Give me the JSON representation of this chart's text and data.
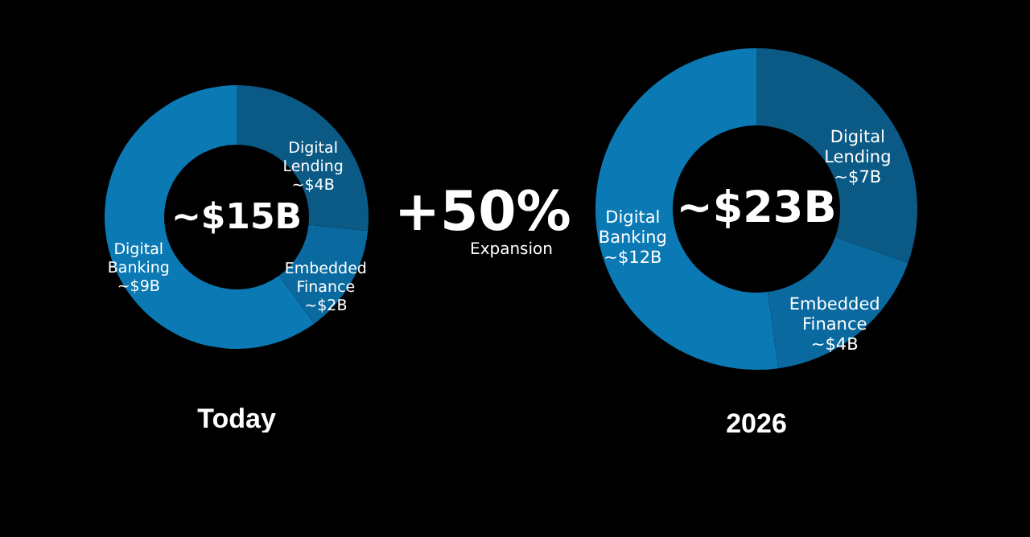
{
  "chart_data": [
    {
      "type": "donut",
      "title": "Today",
      "categories": [
        "Digital Lending",
        "Embedded Finance",
        "Digital Banking"
      ],
      "values": [
        4,
        2,
        9
      ],
      "value_labels": [
        "~$4B",
        "~$2B",
        "~$9B"
      ],
      "colors": [
        "#0b5a85",
        "#0a6aa0",
        "#0a79b4"
      ],
      "annotations": [
        "~$15B",
        "+50%",
        "Expansion"
      ]
    },
    {
      "type": "donut",
      "title": "2026",
      "categories": [
        "Digital Lending",
        "Embedded Finance",
        "Digital Banking"
      ],
      "values": [
        7,
        4,
        12
      ],
      "value_labels": [
        "~$7B",
        "~$4B",
        "~$12B"
      ],
      "colors": [
        "#0b5a85",
        "#0a6aa0",
        "#0a79b4"
      ],
      "annotations": [
        "~$23B"
      ]
    }
  ]
}
